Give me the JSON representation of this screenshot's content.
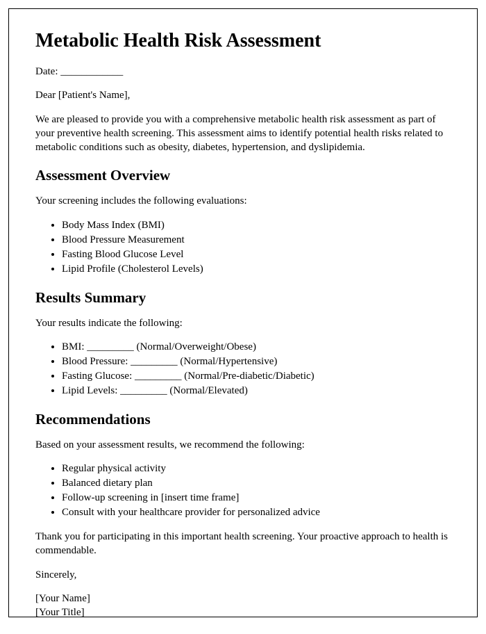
{
  "title": "Metabolic Health Risk Assessment",
  "date_line": "Date: ____________",
  "salutation": "Dear [Patient's Name],",
  "intro": "We are pleased to provide you with a comprehensive metabolic health risk assessment as part of your preventive health screening. This assessment aims to identify potential health risks related to metabolic conditions such as obesity, diabetes, hypertension, and dyslipidemia.",
  "section1": {
    "heading": "Assessment Overview",
    "lead": "Your screening includes the following evaluations:",
    "items": [
      "Body Mass Index (BMI)",
      "Blood Pressure Measurement",
      "Fasting Blood Glucose Level",
      "Lipid Profile (Cholesterol Levels)"
    ]
  },
  "section2": {
    "heading": "Results Summary",
    "lead": "Your results indicate the following:",
    "items": [
      "BMI: _________ (Normal/Overweight/Obese)",
      "Blood Pressure: _________ (Normal/Hypertensive)",
      "Fasting Glucose: _________ (Normal/Pre-diabetic/Diabetic)",
      "Lipid Levels: _________ (Normal/Elevated)"
    ]
  },
  "section3": {
    "heading": "Recommendations",
    "lead": "Based on your assessment results, we recommend the following:",
    "items": [
      "Regular physical activity",
      "Balanced dietary plan",
      "Follow-up screening in [insert time frame]",
      "Consult with your healthcare provider for personalized advice"
    ]
  },
  "thankyou": "Thank you for participating in this important health screening. Your proactive approach to health is commendable.",
  "closing": "Sincerely,",
  "sig_name": "[Your Name]",
  "sig_title": "[Your Title]"
}
